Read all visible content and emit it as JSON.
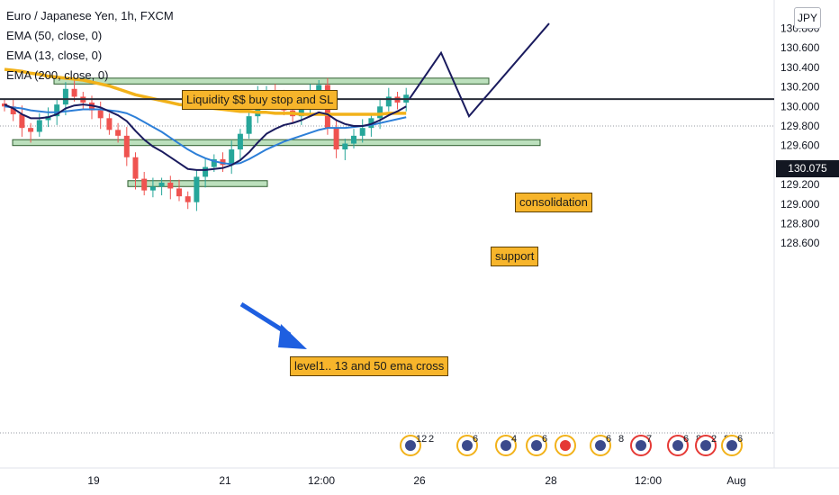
{
  "legend": {
    "symbol": "Euro / Japanese Yen, 1h, FXCM",
    "ema50": "EMA (50, close, 0)",
    "ema13": "EMA (13, close, 0)",
    "ema200": "EMA (200, close, 0)"
  },
  "currency": "JPY",
  "last_price": "130.075",
  "annotations": {
    "liquidity": "Liquidity $$ buy stop and SL",
    "consolidation": "consolidation",
    "support": "support",
    "level1": "level1.. 13 and 50 ema cross"
  },
  "colors": {
    "bull": "#26a69a",
    "bear": "#ef5350",
    "ema13": "#1a1b5e",
    "ema50": "#2d7fd8",
    "ema200": "#f2b21a",
    "zone_fill": "#a5d6a7",
    "arrow": "#1e5fe0",
    "projection": "#1a1b5e"
  },
  "events": [
    {
      "label": "12",
      "extra": "2"
    },
    {
      "label": "6"
    },
    {
      "label": "4"
    },
    {
      "label": "6"
    },
    {
      "label": ""
    },
    {
      "label": "6",
      "extra": "8"
    },
    {
      "label": "7"
    },
    {
      "label": "6",
      "extra": "8"
    },
    {
      "label": "2",
      "extra": "8"
    },
    {
      "label": "6"
    }
  ],
  "chart_data": {
    "type": "candlestick",
    "ylim": [
      128.58,
      130.84
    ],
    "x_tick_labels": [
      "19",
      "21",
      "12:00",
      "26",
      "28",
      "12:00",
      "Aug"
    ],
    "y_tick_labels": [
      "130.800",
      "130.600",
      "130.400",
      "130.200",
      "130.000",
      "129.800",
      "129.600",
      "129.400",
      "129.200",
      "129.000",
      "128.800",
      "128.600"
    ],
    "y_ticks": [
      130.8,
      130.6,
      130.4,
      130.2,
      130.0,
      129.8,
      129.6,
      129.4,
      129.2,
      129.0,
      128.8,
      128.6
    ],
    "last_price": 130.075,
    "close": [
      130.0,
      129.92,
      129.78,
      129.74,
      129.86,
      129.9,
      130.02,
      130.18,
      130.1,
      130.04,
      129.96,
      129.88,
      129.76,
      129.7,
      129.48,
      129.26,
      129.14,
      129.18,
      129.22,
      129.16,
      129.08,
      129.02,
      129.28,
      129.38,
      129.46,
      129.4,
      129.56,
      129.72,
      129.9,
      130.12,
      130.16,
      130.08,
      129.96,
      129.9,
      130.02,
      130.14,
      130.22,
      129.78,
      129.56,
      129.62,
      129.7,
      129.78,
      129.88,
      130.0,
      130.1,
      130.04,
      130.12
    ],
    "ema13": [
      130.02,
      129.98,
      129.92,
      129.88,
      129.88,
      129.89,
      129.92,
      129.98,
      130.01,
      130.02,
      130.01,
      129.99,
      129.95,
      129.91,
      129.85,
      129.75,
      129.66,
      129.59,
      129.54,
      129.48,
      129.42,
      129.36,
      129.35,
      129.35,
      129.36,
      129.37,
      129.4,
      129.45,
      129.53,
      129.63,
      129.72,
      129.77,
      129.81,
      129.83,
      129.86,
      129.9,
      129.94,
      129.92,
      129.86,
      129.82,
      129.8,
      129.8,
      129.82,
      129.86,
      129.91,
      129.95,
      130.0
    ],
    "ema50": [
      130.0,
      129.99,
      129.98,
      129.96,
      129.95,
      129.94,
      129.94,
      129.95,
      129.96,
      129.97,
      129.97,
      129.97,
      129.96,
      129.95,
      129.93,
      129.89,
      129.84,
      129.79,
      129.74,
      129.68,
      129.62,
      129.56,
      129.51,
      129.47,
      129.44,
      129.42,
      129.41,
      129.42,
      129.46,
      129.51,
      129.56,
      129.6,
      129.64,
      129.67,
      129.7,
      129.73,
      129.76,
      129.78,
      129.78,
      129.78,
      129.79,
      129.8,
      129.81,
      129.83,
      129.85,
      129.87,
      129.89
    ],
    "ema200": [
      130.38,
      130.37,
      130.36,
      130.34,
      130.33,
      130.31,
      130.3,
      130.29,
      130.28,
      130.27,
      130.25,
      130.23,
      130.21,
      130.18,
      130.15,
      130.12,
      130.1,
      130.08,
      130.06,
      130.04,
      130.02,
      130.01,
      130.0,
      129.99,
      129.98,
      129.97,
      129.96,
      129.95,
      129.95,
      129.94,
      129.94,
      129.93,
      129.93,
      129.93,
      129.92,
      129.92,
      129.92,
      129.92,
      129.92,
      129.92,
      129.92,
      129.92,
      129.92,
      129.92,
      129.93,
      129.93,
      129.93
    ],
    "zones": [
      {
        "name": "liquidity-zone",
        "y_top": 130.29,
        "y_bottom": 130.23
      },
      {
        "name": "support-zone",
        "y_top": 129.66,
        "y_bottom": 129.6
      },
      {
        "name": "level1-zone",
        "y_top": 129.24,
        "y_bottom": 129.18
      }
    ],
    "projection": [
      130.08,
      130.55,
      129.9,
      130.85
    ]
  }
}
